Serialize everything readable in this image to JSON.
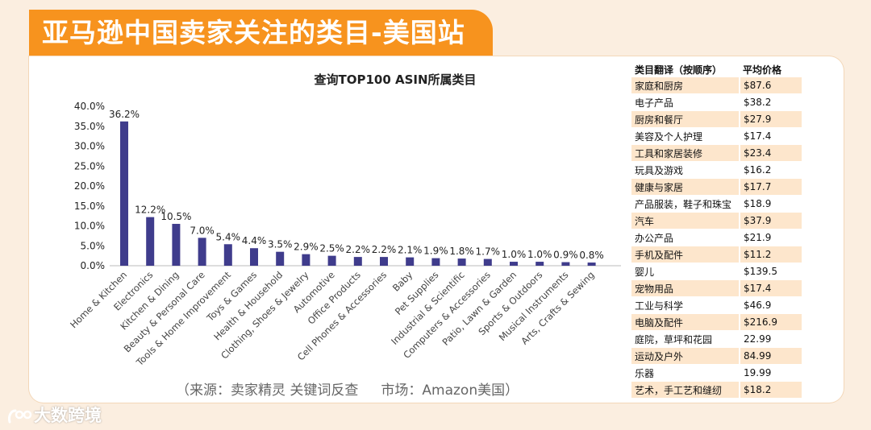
{
  "page_title": "亚马逊中国卖家关注的类目-美国站",
  "source_note": "（来源：卖家精灵 关键词反查",
  "market_note": "市场：Amazon美国）",
  "logo_text": "大数跨境",
  "colors": {
    "bar": "#3f3c8c",
    "accent": "#f7931e",
    "table_stripe": "#fde6cc"
  },
  "chart_data": {
    "type": "bar",
    "title": "查询TOP100 ASIN所属类目",
    "categories": [
      "Home & Kitchen",
      "Electronics",
      "Kitchen & Dining",
      "Beauty & Personal Care",
      "Tools & Home Improvement",
      "Toys & Games",
      "Health & Household",
      "Clothing, Shoes & Jewelry",
      "Automotive",
      "Office Products",
      "Cell Phones & Accessories",
      "Baby",
      "Pet Supplies",
      "Industrial & Scientific",
      "Computers & Accessories",
      "Patio, Lawn & Garden",
      "Sports & Outdoors",
      "Musical Instruments",
      "Arts, Crafts & Sewing"
    ],
    "values": [
      36.2,
      12.2,
      10.5,
      7.0,
      5.4,
      4.4,
      3.5,
      2.9,
      2.5,
      2.2,
      2.2,
      2.1,
      1.9,
      1.8,
      1.7,
      1.0,
      1.0,
      0.9,
      0.8
    ],
    "data_labels": [
      "36.2%",
      "12.2%",
      "10.5%",
      "7.0%",
      "5.4%",
      "4.4%",
      "3.5%",
      "2.9%",
      "2.5%",
      "2.2%",
      "2.2%",
      "2.1%",
      "1.9%",
      "1.8%",
      "1.7%",
      "1.0%",
      "1.0%",
      "0.9%",
      "0.8%"
    ],
    "ylim": [
      0,
      40
    ],
    "yticks": [
      "0.0%",
      "5.0%",
      "10.0%",
      "15.0%",
      "20.0%",
      "25.0%",
      "30.0%",
      "35.0%",
      "40.0%"
    ],
    "xlabel": "",
    "ylabel": "",
    "grid": false
  },
  "price_table": {
    "headers": [
      "类目翻译（按顺序）",
      "平均价格"
    ],
    "rows": [
      [
        "家庭和厨房",
        "$87.6"
      ],
      [
        "电子产品",
        "$38.2"
      ],
      [
        "厨房和餐厅",
        "$27.9"
      ],
      [
        "美容及个人护理",
        "$17.4"
      ],
      [
        "工具和家居装修",
        "$23.4"
      ],
      [
        "玩具及游戏",
        "$16.2"
      ],
      [
        "健康与家居",
        "$17.7"
      ],
      [
        "产品服装，鞋子和珠宝",
        "$18.9"
      ],
      [
        "汽车",
        "$37.9"
      ],
      [
        "办公产品",
        "$21.9"
      ],
      [
        "手机及配件",
        "$11.2"
      ],
      [
        "婴儿",
        "$139.5"
      ],
      [
        "宠物用品",
        "$17.4"
      ],
      [
        "工业与科学",
        "$46.9"
      ],
      [
        "电脑及配件",
        "$216.9"
      ],
      [
        "庭院，草坪和花园",
        "22.99"
      ],
      [
        "运动及户外",
        "84.99"
      ],
      [
        "乐器",
        "19.99"
      ],
      [
        "艺术，手工艺和缝纫",
        "$18.2"
      ]
    ]
  }
}
